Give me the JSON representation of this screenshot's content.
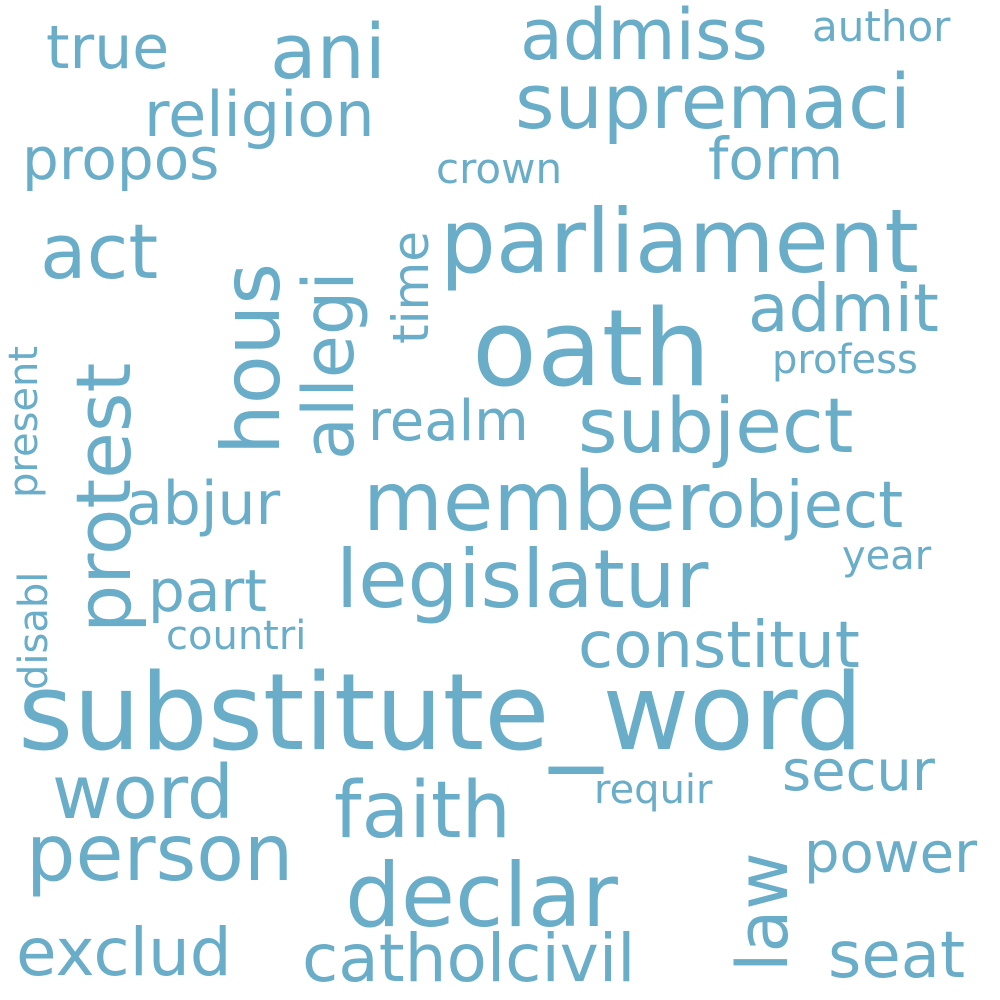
{
  "color": "#6aadc9",
  "background": "#ffffff",
  "words": [
    "substitute_word",
    "oath",
    "parliament",
    "declar",
    "member",
    "legislatur",
    "supremaci",
    "subject",
    "faith",
    "person",
    "act",
    "ani",
    "admiss",
    "religion",
    "word",
    "constitut",
    "object",
    "admit",
    "hous",
    "protest",
    "allegi",
    "law",
    "catholcivil",
    "exclud",
    "seat",
    "power",
    "secur",
    "abjur",
    "part",
    "realm",
    "true",
    "propos",
    "form",
    "time",
    "author",
    "crown",
    "profess",
    "present",
    "disabl",
    "year",
    "requir",
    "countri"
  ]
}
